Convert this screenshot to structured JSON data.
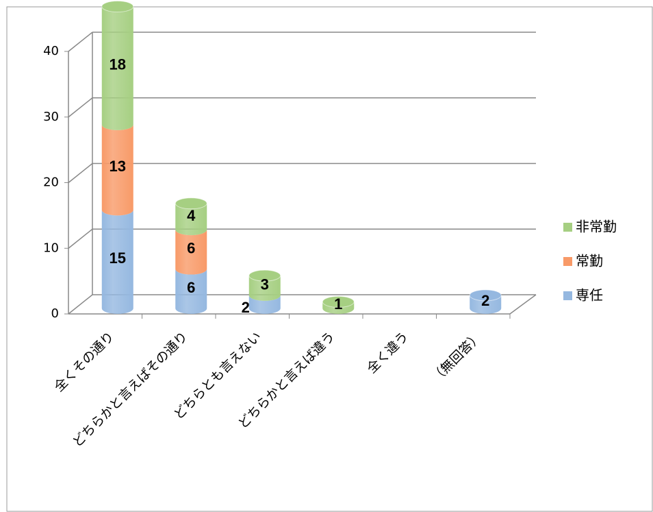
{
  "chart_data": {
    "type": "bar3d_stacked",
    "categories": [
      "全くその通り",
      "どちらかと言えばその通り",
      "どちらとも言えない",
      "どちらかと言えば違う",
      "全く違う",
      "（無回答）"
    ],
    "series": [
      {
        "name": "専任",
        "color": "#95b8e0",
        "values": [
          15,
          6,
          2,
          null,
          null,
          2
        ]
      },
      {
        "name": "常勤",
        "color": "#f89a68",
        "values": [
          13,
          6,
          null,
          null,
          null,
          null
        ]
      },
      {
        "name": "非常勤",
        "color": "#a6cf82",
        "values": [
          18,
          4,
          3,
          1,
          null,
          null
        ]
      }
    ],
    "ylim": [
      0,
      40
    ],
    "yticks": [
      0,
      10,
      20,
      30,
      40
    ],
    "grid": true,
    "legend": "right"
  }
}
